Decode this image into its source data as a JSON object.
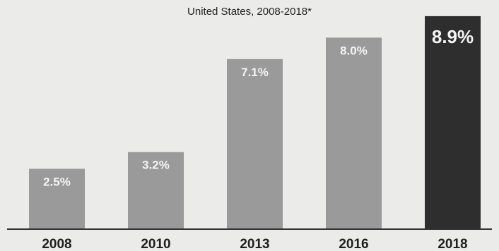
{
  "chart_data": {
    "type": "bar",
    "subtitle": "United States, 2008-2018*",
    "categories": [
      "2008",
      "2010",
      "2013",
      "2016",
      "2018"
    ],
    "values": [
      2.5,
      3.2,
      7.1,
      8.0,
      8.9
    ],
    "value_labels": [
      "2.5%",
      "3.2%",
      "7.1%",
      "8.0%",
      "8.9%"
    ],
    "ylim": [
      0,
      9.4
    ],
    "grid": false,
    "legend": "none",
    "bar_colors": [
      "#9a9a9a",
      "#9a9a9a",
      "#9a9a9a",
      "#9a9a9a",
      "#2e2e2e"
    ],
    "label_color": "#f4f4f4",
    "axis_color": "#333333"
  }
}
